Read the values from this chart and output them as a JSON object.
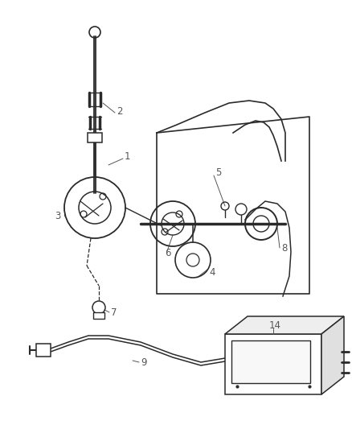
{
  "bg_color": "#ffffff",
  "line_color": "#2a2a2a",
  "label_color": "#555555",
  "lw": 1.1
}
